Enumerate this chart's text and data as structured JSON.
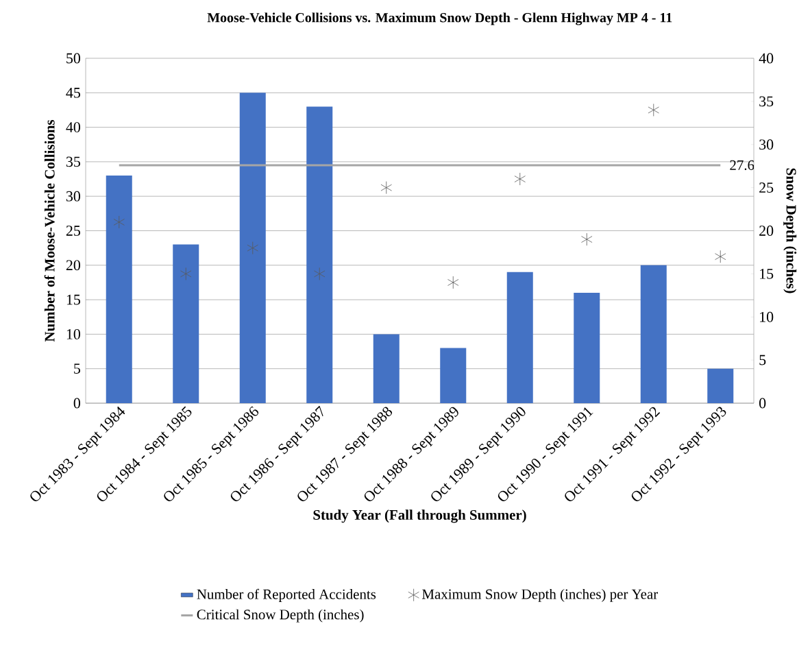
{
  "chart_data": {
    "type": "bar",
    "title": "Moose-Vehicle Collisions vs. Maximum Snow Depth - Glenn Highway MP 4 - 11",
    "xlabel": "Study Year (Fall through Summer)",
    "ylabel": "Number of Moose-Vehicle Collisions",
    "y2label": "Snow Depth (inches)",
    "categories": [
      "Oct 1983 - Sept 1984",
      "Oct 1984 - Sept 1985",
      "Oct 1985 - Sept 1986",
      "Oct 1986 - Sept 1987",
      "Oct 1987 - Sept 1988",
      "Oct 1988 - Sept 1989",
      "Oct 1989 - Sept 1990",
      "Oct 1990 - Sept 1991",
      "Oct 1991 - Sept 1992",
      "Oct 1992 - Sept 1993"
    ],
    "series": [
      {
        "name": "Number of Reported Accidents",
        "color": "#4472c4",
        "values": [
          33,
          23,
          45,
          43,
          10,
          8,
          19,
          16,
          20,
          5
        ]
      },
      {
        "name": "Maximum Snow Depth (inches) per Year",
        "type": "scatter",
        "axis": "y2",
        "color": "#595959",
        "marker": "cross",
        "values": [
          21,
          15,
          18,
          15,
          25,
          14,
          26,
          19,
          34,
          17
        ]
      },
      {
        "name": "Critical Snow Depth (inches)",
        "type": "line",
        "axis": "y2",
        "color": "#a5a5a5",
        "values": [
          27.6,
          27.6,
          27.6,
          27.6,
          27.6,
          27.6,
          27.6,
          27.6,
          27.6,
          27.6
        ],
        "value_labels": [
          null,
          null,
          null,
          null,
          null,
          null,
          null,
          null,
          null,
          "27.6"
        ]
      }
    ],
    "ylim": [
      0,
      50
    ],
    "yticks": [
      0,
      5,
      10,
      15,
      20,
      25,
      30,
      35,
      40,
      45,
      50
    ],
    "y2lim": [
      0,
      40
    ],
    "y2ticks": [
      0,
      5,
      10,
      15,
      20,
      25,
      30,
      35,
      40
    ],
    "grid": "y",
    "legend": "bottom"
  }
}
